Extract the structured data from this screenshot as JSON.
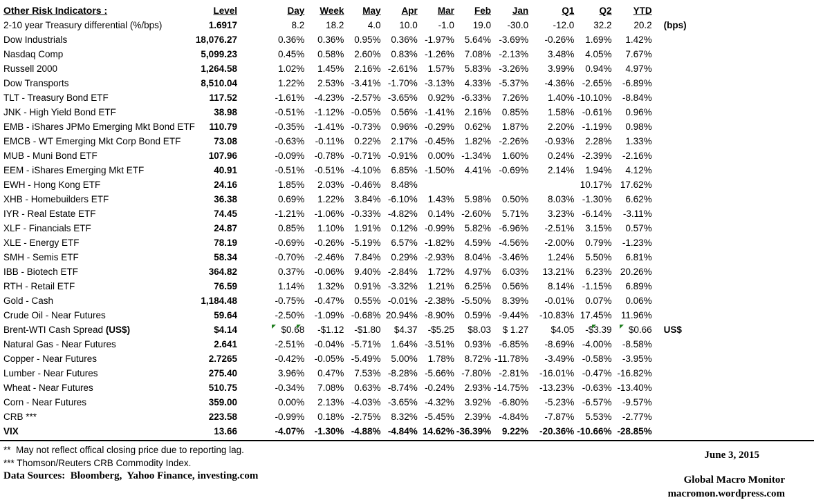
{
  "meta": {
    "date": "June 3, 2015",
    "site_name": "Global Macro Monitor",
    "site_url": "macromon.wordpress.com"
  },
  "table": {
    "title": "Other Risk Indicators :",
    "columns": [
      "Level",
      "Day",
      "Week",
      "May",
      "Apr",
      "Mar",
      "Feb",
      "Jan",
      "Q1",
      "Q2",
      "YTD"
    ],
    "rows": [
      {
        "label": "2-10 year Treasury differential (%/bps)",
        "values": [
          "1.6917",
          "8.2",
          "18.2",
          "4.0",
          "10.0",
          "-1.0",
          "19.0",
          "-30.0",
          "-12.0",
          "32.2",
          "20.2"
        ],
        "note": "(bps)"
      },
      {
        "label": "Dow Industrials",
        "values": [
          "18,076.27",
          "0.36%",
          "0.36%",
          "0.95%",
          "0.36%",
          "-1.97%",
          "5.64%",
          "-3.69%",
          "-0.26%",
          "1.69%",
          "1.42%"
        ]
      },
      {
        "label": "Nasdaq Comp",
        "values": [
          "5,099.23",
          "0.45%",
          "0.58%",
          "2.60%",
          "0.83%",
          "-1.26%",
          "7.08%",
          "-2.13%",
          "3.48%",
          "4.05%",
          "7.67%"
        ]
      },
      {
        "label": "Russell 2000",
        "values": [
          "1,264.58",
          "1.02%",
          "1.45%",
          "2.16%",
          "-2.61%",
          "1.57%",
          "5.83%",
          "-3.26%",
          "3.99%",
          "0.94%",
          "4.97%"
        ]
      },
      {
        "label": "Dow Transports",
        "values": [
          "8,510.04",
          "1.22%",
          "2.53%",
          "-3.41%",
          "-1.70%",
          "-3.13%",
          "4.33%",
          "-5.37%",
          "-4.36%",
          "-2.65%",
          "-6.89%"
        ]
      },
      {
        "label": "TLT - Treasury Bond ETF",
        "values": [
          "117.52",
          "-1.61%",
          "-4.23%",
          "-2.57%",
          "-3.65%",
          "0.92%",
          "-6.33%",
          "7.26%",
          "1.40%",
          "-10.10%",
          "-8.84%"
        ]
      },
      {
        "label": "JNK - High Yield Bond ETF",
        "values": [
          "38.98",
          "-0.51%",
          "-1.12%",
          "-0.05%",
          "0.56%",
          "-1.41%",
          "2.16%",
          "0.85%",
          "1.58%",
          "-0.61%",
          "0.96%"
        ]
      },
      {
        "label": "EMB - iShares JPMo Emerging Mkt Bond ETF",
        "values": [
          "110.79",
          "-0.35%",
          "-1.41%",
          "-0.73%",
          "0.96%",
          "-0.29%",
          "0.62%",
          "1.87%",
          "2.20%",
          "-1.19%",
          "0.98%"
        ]
      },
      {
        "label": "EMCB - WT Emerging Mkt Corp Bond ETF",
        "values": [
          "73.08",
          "-0.63%",
          "-0.11%",
          "0.22%",
          "2.17%",
          "-0.45%",
          "1.82%",
          "-2.26%",
          "-0.93%",
          "2.28%",
          "1.33%"
        ]
      },
      {
        "label": "MUB - Muni Bond ETF",
        "values": [
          "107.96",
          "-0.09%",
          "-0.78%",
          "-0.71%",
          "-0.91%",
          "0.00%",
          "-1.34%",
          "1.60%",
          "0.24%",
          "-2.39%",
          "-2.16%"
        ]
      },
      {
        "label": "EEM - iShares Emerging Mkt ETF",
        "values": [
          "40.91",
          "-0.51%",
          "-0.51%",
          "-4.10%",
          "6.85%",
          "-1.50%",
          "4.41%",
          "-0.69%",
          "2.14%",
          "1.94%",
          "4.12%"
        ]
      },
      {
        "label": "EWH - Hong Kong ETF",
        "values": [
          "24.16",
          "1.85%",
          "2.03%",
          "-0.46%",
          "8.48%",
          "",
          "",
          "",
          "",
          "10.17%",
          "17.62%"
        ]
      },
      {
        "label": "XHB - Homebuilders ETF",
        "values": [
          "36.38",
          "0.69%",
          "1.22%",
          "3.84%",
          "-6.10%",
          "1.43%",
          "5.98%",
          "0.50%",
          "8.03%",
          "-1.30%",
          "6.62%"
        ]
      },
      {
        "label": "IYR - Real Estate ETF",
        "values": [
          "74.45",
          "-1.21%",
          "-1.06%",
          "-0.33%",
          "-4.82%",
          "0.14%",
          "-2.60%",
          "5.71%",
          "3.23%",
          "-6.14%",
          "-3.11%"
        ]
      },
      {
        "label": "XLF - Financials ETF",
        "values": [
          "24.87",
          "0.85%",
          "1.10%",
          "1.91%",
          "0.12%",
          "-0.99%",
          "5.82%",
          "-6.96%",
          "-2.51%",
          "3.15%",
          "0.57%"
        ]
      },
      {
        "label": "XLE - Energy ETF",
        "values": [
          "78.19",
          "-0.69%",
          "-0.26%",
          "-5.19%",
          "6.57%",
          "-1.82%",
          "4.59%",
          "-4.56%",
          "-2.00%",
          "0.79%",
          "-1.23%"
        ]
      },
      {
        "label": "SMH - Semis ETF",
        "values": [
          "58.34",
          "-0.70%",
          "-2.46%",
          "7.84%",
          "0.29%",
          "-2.93%",
          "8.04%",
          "-3.46%",
          "1.24%",
          "5.50%",
          "6.81%"
        ]
      },
      {
        "label": "IBB - Biotech ETF",
        "values": [
          "364.82",
          "0.37%",
          "-0.06%",
          "9.40%",
          "-2.84%",
          "1.72%",
          "4.97%",
          "6.03%",
          "13.21%",
          "6.23%",
          "20.26%"
        ]
      },
      {
        "label": "RTH - Retail ETF",
        "values": [
          "76.59",
          "1.14%",
          "1.32%",
          "0.91%",
          "-3.32%",
          "1.21%",
          "6.25%",
          "0.56%",
          "8.14%",
          "-1.15%",
          "6.89%"
        ]
      },
      {
        "label": "Gold - Cash",
        "values": [
          "1,184.48",
          "-0.75%",
          "-0.47%",
          "0.55%",
          "-0.01%",
          "-2.38%",
          "-5.50%",
          "8.39%",
          "-0.01%",
          "0.07%",
          "0.06%"
        ]
      },
      {
        "label": "Crude Oil - Near Futures",
        "values": [
          "59.64",
          "-2.50%",
          "-1.09%",
          "-0.68%",
          "20.94%",
          "-8.90%",
          "0.59%",
          "-9.44%",
          "-10.83%",
          "17.45%",
          "11.96%"
        ]
      },
      {
        "label": "Brent-WTI Cash Spread ",
        "label_bold": "(US$)",
        "values": [
          "$4.14",
          "$0.68",
          "-$1.12",
          "-$1.80",
          "$4.37",
          "-$5.25",
          "$8.03",
          "$ 1.27",
          "$4.05",
          "-$3.39",
          "$0.66"
        ],
        "note": "US$",
        "flags": [
          1,
          2,
          9,
          10
        ]
      },
      {
        "label": "Natural Gas - Near Futures",
        "values": [
          "2.641",
          "-2.51%",
          "-0.04%",
          "-5.71%",
          "1.64%",
          "-3.51%",
          "0.93%",
          "-6.85%",
          "-8.69%",
          "-4.00%",
          "-8.58%"
        ]
      },
      {
        "label": "Copper - Near Futures",
        "values": [
          "2.7265",
          "-0.42%",
          "-0.05%",
          "-5.49%",
          "5.00%",
          "1.78%",
          "8.72%",
          "-11.78%",
          "-3.49%",
          "-0.58%",
          "-3.95%"
        ]
      },
      {
        "label": "Lumber - Near Futures",
        "values": [
          "275.40",
          "3.96%",
          "0.47%",
          "7.53%",
          "-8.28%",
          "-5.66%",
          "-7.80%",
          "-2.81%",
          "-16.01%",
          "-0.47%",
          "-16.82%"
        ]
      },
      {
        "label": "Wheat - Near Futures",
        "values": [
          "510.75",
          "-0.34%",
          "7.08%",
          "0.63%",
          "-8.74%",
          "-0.24%",
          "2.93%",
          "-14.75%",
          "-13.23%",
          "-0.63%",
          "-13.40%"
        ]
      },
      {
        "label": "Corn - Near Futures",
        "values": [
          "359.00",
          "0.00%",
          "2.13%",
          "-4.03%",
          "-3.65%",
          "-4.32%",
          "3.92%",
          "-6.80%",
          "-5.23%",
          "-6.57%",
          "-9.57%"
        ]
      },
      {
        "label": "CRB ***",
        "values": [
          "223.58",
          "-0.99%",
          "0.18%",
          "-2.75%",
          "8.32%",
          "-5.45%",
          "2.39%",
          "-4.84%",
          "-7.87%",
          "5.53%",
          "-2.77%"
        ]
      },
      {
        "label": "VIX",
        "bold": true,
        "values": [
          "13.66",
          "-4.07%",
          "-1.30%",
          "-4.88%",
          "-4.84%",
          "14.62%",
          "-36.39%",
          "9.22%",
          "-20.36%",
          "-10.66%",
          "-28.85%"
        ]
      }
    ]
  },
  "footnotes": [
    "**  May not reflect offical closing price due to reporting lag.",
    "*** Thomson/Reuters CRB Commodity Index."
  ],
  "sources": "Data Sources:  Bloomberg,  Yahoo Finance, investing.com",
  "flag_color": "#1e7e1e"
}
